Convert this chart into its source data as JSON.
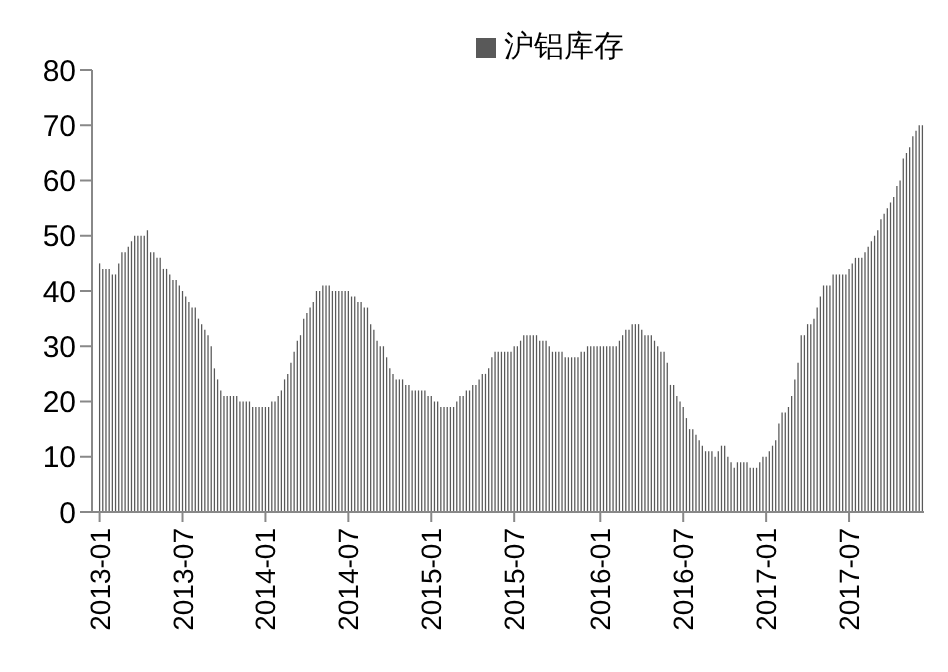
{
  "chart_data": {
    "type": "bar",
    "categories": [
      "2013-01",
      null,
      null,
      null,
      null,
      null,
      null,
      null,
      null,
      null,
      null,
      null,
      null,
      null,
      null,
      null,
      null,
      null,
      null,
      null,
      null,
      null,
      null,
      null,
      null,
      null,
      "2013-07",
      null,
      null,
      null,
      null,
      null,
      null,
      null,
      null,
      null,
      null,
      null,
      null,
      null,
      null,
      null,
      null,
      null,
      null,
      null,
      null,
      null,
      null,
      null,
      null,
      null,
      "2014-01",
      null,
      null,
      null,
      null,
      null,
      null,
      null,
      null,
      null,
      null,
      null,
      null,
      null,
      null,
      null,
      null,
      null,
      null,
      null,
      null,
      null,
      null,
      null,
      null,
      null,
      "2014-07",
      null,
      null,
      null,
      null,
      null,
      null,
      null,
      null,
      null,
      null,
      null,
      null,
      null,
      null,
      null,
      null,
      null,
      null,
      null,
      null,
      null,
      null,
      null,
      null,
      null,
      "2015-01",
      null,
      null,
      null,
      null,
      null,
      null,
      null,
      null,
      null,
      null,
      null,
      null,
      null,
      null,
      null,
      null,
      null,
      null,
      null,
      null,
      null,
      null,
      null,
      null,
      null,
      "2015-07",
      null,
      null,
      null,
      null,
      null,
      null,
      null,
      null,
      null,
      null,
      null,
      null,
      null,
      null,
      null,
      null,
      null,
      null,
      null,
      null,
      null,
      null,
      null,
      null,
      null,
      null,
      "2016-01",
      null,
      null,
      null,
      null,
      null,
      null,
      null,
      null,
      null,
      null,
      null,
      null,
      null,
      null,
      null,
      null,
      null,
      null,
      null,
      null,
      null,
      null,
      null,
      null,
      null,
      "2016-07",
      null,
      null,
      null,
      null,
      null,
      null,
      null,
      null,
      null,
      null,
      null,
      null,
      null,
      null,
      null,
      null,
      null,
      null,
      null,
      null,
      null,
      null,
      null,
      null,
      null,
      "2017-01",
      null,
      null,
      null,
      null,
      null,
      null,
      null,
      null,
      null,
      null,
      null,
      null,
      null,
      null,
      null,
      null,
      null,
      null,
      null,
      null,
      null,
      null,
      null,
      null,
      null,
      "2017-07",
      null,
      null,
      null,
      null,
      null,
      null,
      null,
      null,
      null,
      null,
      null,
      null,
      null,
      null,
      null,
      null,
      null,
      null,
      null,
      null,
      null,
      null,
      null
    ],
    "series": [
      {
        "name": "沪铝库存",
        "color": "#595959",
        "values": [
          45,
          44,
          44,
          44,
          43,
          43,
          45,
          47,
          47,
          48,
          49,
          50,
          50,
          50,
          50,
          51,
          47,
          47,
          46,
          46,
          44,
          44,
          43,
          42,
          42,
          41,
          40,
          39,
          38,
          37,
          37,
          35,
          34,
          33,
          32,
          30,
          26,
          24,
          22,
          21,
          21,
          21,
          21,
          21,
          20,
          20,
          20,
          20,
          19,
          19,
          19,
          19,
          19,
          19,
          20,
          20,
          21,
          22,
          24,
          25,
          27,
          29,
          31,
          32,
          35,
          36,
          37,
          38,
          40,
          40,
          41,
          41,
          41,
          40,
          40,
          40,
          40,
          40,
          40,
          39,
          39,
          38,
          38,
          37,
          37,
          34,
          33,
          31,
          30,
          30,
          28,
          26,
          25,
          24,
          24,
          24,
          23,
          23,
          22,
          22,
          22,
          22,
          22,
          21,
          21,
          20,
          20,
          19,
          19,
          19,
          19,
          19,
          20,
          21,
          21,
          22,
          22,
          23,
          23,
          24,
          25,
          25,
          26,
          28,
          29,
          29,
          29,
          29,
          29,
          29,
          30,
          30,
          31,
          32,
          32,
          32,
          32,
          32,
          31,
          31,
          31,
          30,
          29,
          29,
          29,
          29,
          28,
          28,
          28,
          28,
          28,
          29,
          29,
          30,
          30,
          30,
          30,
          30,
          30,
          30,
          30,
          30,
          30,
          31,
          32,
          33,
          33,
          34,
          34,
          34,
          33,
          32,
          32,
          32,
          31,
          30,
          29,
          29,
          27,
          23,
          23,
          21,
          20,
          19,
          17,
          15,
          15,
          14,
          13,
          12,
          11,
          11,
          11,
          10,
          11,
          12,
          12,
          10,
          9,
          8,
          9,
          9,
          9,
          9,
          8,
          8,
          8,
          9,
          10,
          10,
          11,
          12,
          13,
          16,
          18,
          18,
          19,
          21,
          24,
          27,
          32,
          32,
          34,
          34,
          35,
          37,
          39,
          41,
          41,
          41,
          43,
          43,
          43,
          43,
          43,
          44,
          45,
          46,
          46,
          46,
          47,
          48,
          49,
          50,
          51,
          53,
          54,
          55,
          56,
          57,
          59,
          60,
          64,
          65,
          66,
          68,
          69,
          70,
          70
        ]
      }
    ],
    "ylim": [
      0,
      80
    ],
    "yticks": [
      0,
      10,
      20,
      30,
      40,
      50,
      60,
      70,
      80
    ],
    "legend": "top",
    "grid": false
  }
}
